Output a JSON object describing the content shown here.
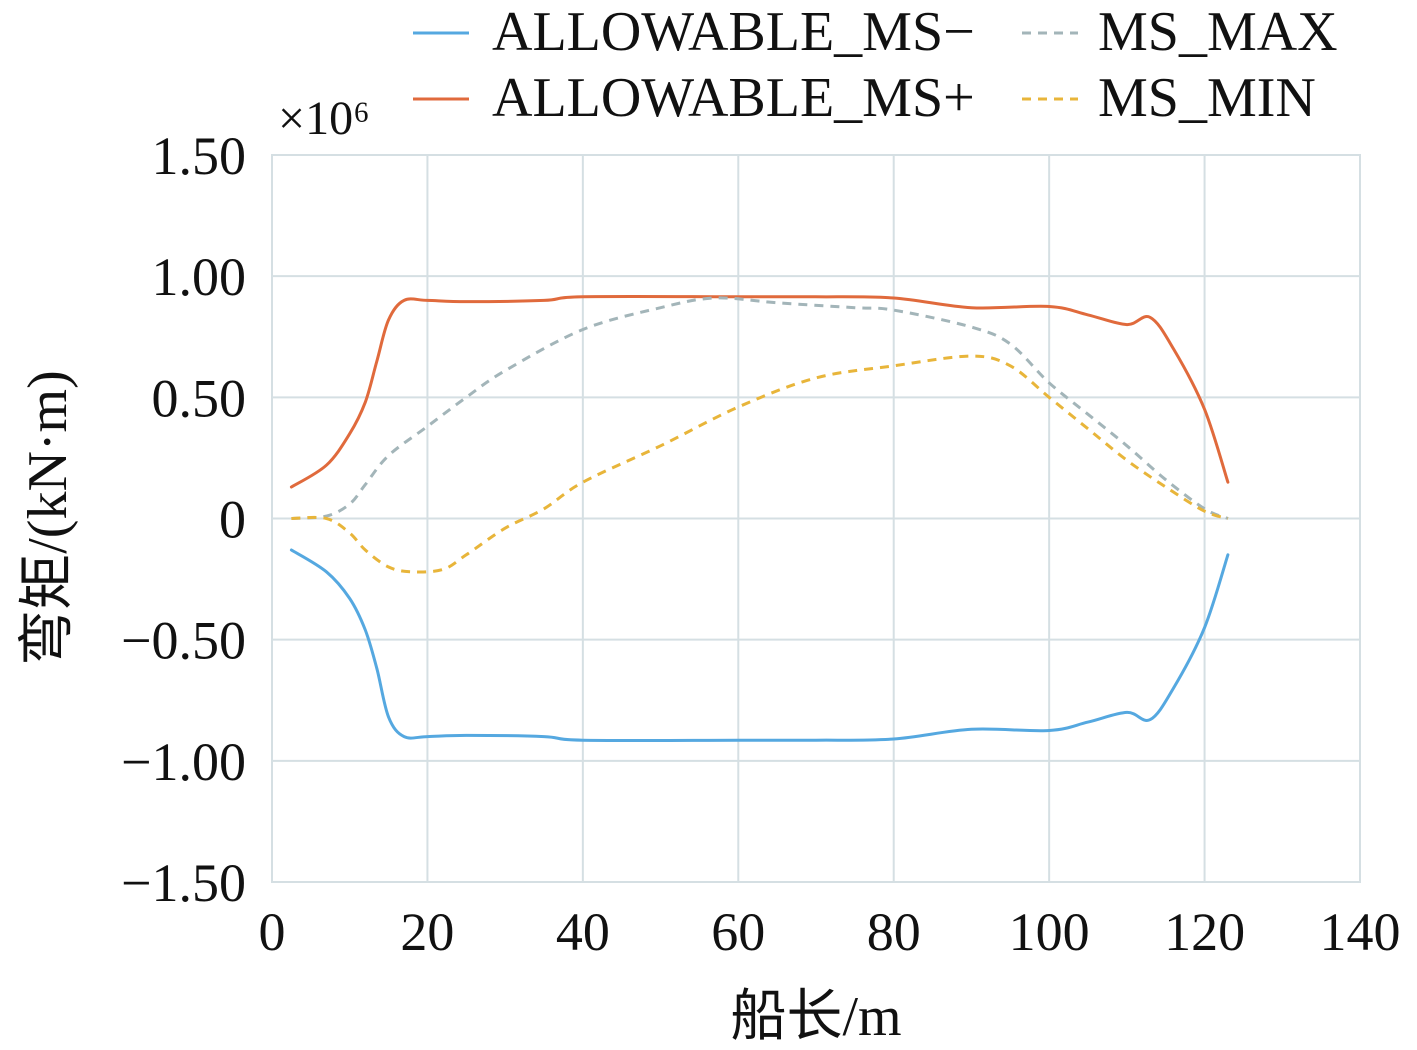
{
  "chart_data": {
    "type": "line",
    "title": "",
    "xlabel": "船长/m",
    "ylabel": "弯矩/(kN·m)",
    "y_multiplier": "×10⁶",
    "xlim": [
      0,
      140
    ],
    "ylim": [
      -1.5,
      1.5
    ],
    "x_ticks": [
      "0",
      "20",
      "40",
      "60",
      "80",
      "100",
      "120",
      "140"
    ],
    "y_ticks": [
      "1.50",
      "1.00",
      "0.50",
      "0",
      "−0.50",
      "−1.00",
      "−1.50"
    ],
    "grid": true,
    "legend_position": "top",
    "series": [
      {
        "name": "ALLOWABLE_MS−",
        "color": "#55a8e0",
        "dash": "solid",
        "points": [
          [
            2.5,
            -0.13
          ],
          [
            7,
            -0.22
          ],
          [
            10,
            -0.33
          ],
          [
            12,
            -0.46
          ],
          [
            13.5,
            -0.62
          ],
          [
            15,
            -0.82
          ],
          [
            17,
            -0.9
          ],
          [
            20,
            -0.9
          ],
          [
            25,
            -0.895
          ],
          [
            35,
            -0.9
          ],
          [
            40,
            -0.915
          ],
          [
            60,
            -0.915
          ],
          [
            70,
            -0.915
          ],
          [
            80,
            -0.91
          ],
          [
            90,
            -0.87
          ],
          [
            100,
            -0.875
          ],
          [
            105,
            -0.84
          ],
          [
            110,
            -0.8
          ],
          [
            113,
            -0.83
          ],
          [
            116,
            -0.7
          ],
          [
            120,
            -0.45
          ],
          [
            123,
            -0.15
          ]
        ]
      },
      {
        "name": "ALLOWABLE_MS+",
        "color": "#e06a3c",
        "dash": "solid",
        "points": [
          [
            2.5,
            0.13
          ],
          [
            7,
            0.22
          ],
          [
            10,
            0.35
          ],
          [
            12,
            0.48
          ],
          [
            13.5,
            0.65
          ],
          [
            15,
            0.82
          ],
          [
            17,
            0.9
          ],
          [
            20,
            0.9
          ],
          [
            25,
            0.895
          ],
          [
            35,
            0.9
          ],
          [
            40,
            0.915
          ],
          [
            60,
            0.915
          ],
          [
            70,
            0.915
          ],
          [
            80,
            0.91
          ],
          [
            90,
            0.87
          ],
          [
            100,
            0.875
          ],
          [
            105,
            0.84
          ],
          [
            110,
            0.8
          ],
          [
            113,
            0.83
          ],
          [
            116,
            0.7
          ],
          [
            120,
            0.45
          ],
          [
            123,
            0.15
          ]
        ]
      },
      {
        "name": "MS_MAX",
        "color": "#a3b5b9",
        "dash": "dashed",
        "points": [
          [
            2.5,
            0
          ],
          [
            7,
            0.01
          ],
          [
            10,
            0.06
          ],
          [
            12,
            0.14
          ],
          [
            15,
            0.26
          ],
          [
            20,
            0.38
          ],
          [
            25,
            0.5
          ],
          [
            30,
            0.61
          ],
          [
            40,
            0.78
          ],
          [
            50,
            0.87
          ],
          [
            57,
            0.91
          ],
          [
            65,
            0.89
          ],
          [
            75,
            0.87
          ],
          [
            80,
            0.86
          ],
          [
            90,
            0.79
          ],
          [
            95,
            0.72
          ],
          [
            100,
            0.56
          ],
          [
            105,
            0.43
          ],
          [
            110,
            0.3
          ],
          [
            115,
            0.16
          ],
          [
            120,
            0.04
          ],
          [
            123,
            0
          ]
        ]
      },
      {
        "name": "MS_MIN",
        "color": "#e8b53a",
        "dash": "dashed",
        "points": [
          [
            2.5,
            0
          ],
          [
            7,
            0
          ],
          [
            10,
            -0.06
          ],
          [
            12,
            -0.13
          ],
          [
            15,
            -0.2
          ],
          [
            18,
            -0.22
          ],
          [
            22,
            -0.21
          ],
          [
            25,
            -0.15
          ],
          [
            30,
            -0.04
          ],
          [
            35,
            0.04
          ],
          [
            40,
            0.15
          ],
          [
            50,
            0.3
          ],
          [
            60,
            0.46
          ],
          [
            70,
            0.58
          ],
          [
            80,
            0.63
          ],
          [
            90,
            0.67
          ],
          [
            95,
            0.63
          ],
          [
            100,
            0.5
          ],
          [
            105,
            0.37
          ],
          [
            110,
            0.24
          ],
          [
            115,
            0.13
          ],
          [
            120,
            0.03
          ],
          [
            123,
            0
          ]
        ]
      }
    ]
  }
}
